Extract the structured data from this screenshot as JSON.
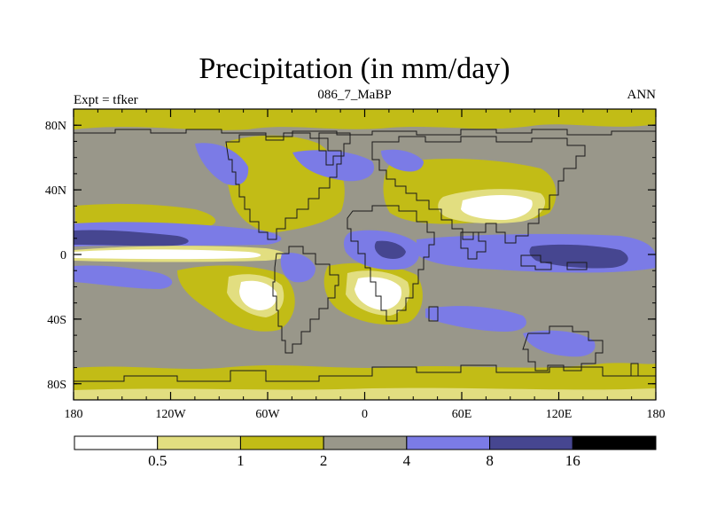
{
  "title": "Precipitation (in mm/day)",
  "left_label": "Expt = tfker",
  "center_label": "086_7_MaBP",
  "right_label": "ANN",
  "map": {
    "lon_range": [
      -180,
      180
    ],
    "lat_range": [
      -90,
      90
    ],
    "y_ticks": [
      {
        "lat": 80,
        "label": "80N"
      },
      {
        "lat": 40,
        "label": "40N"
      },
      {
        "lat": 0,
        "label": "0"
      },
      {
        "lat": -40,
        "label": "40S"
      },
      {
        "lat": -80,
        "label": "80S"
      }
    ],
    "x_ticks": [
      {
        "lon": -180,
        "label": "180"
      },
      {
        "lon": -120,
        "label": "120W"
      },
      {
        "lon": -60,
        "label": "60W"
      },
      {
        "lon": 0,
        "label": "0"
      },
      {
        "lon": 60,
        "label": "60E"
      },
      {
        "lon": 120,
        "label": "120E"
      },
      {
        "lon": 180,
        "label": "180"
      }
    ]
  },
  "colorbar": {
    "colors": [
      "#ffffff",
      "#e2de80",
      "#c2bc16",
      "#99978a",
      "#7b7be6",
      "#464690",
      "#000000"
    ],
    "labels": [
      "0.5",
      "1",
      "2",
      "4",
      "8",
      "16"
    ]
  }
}
